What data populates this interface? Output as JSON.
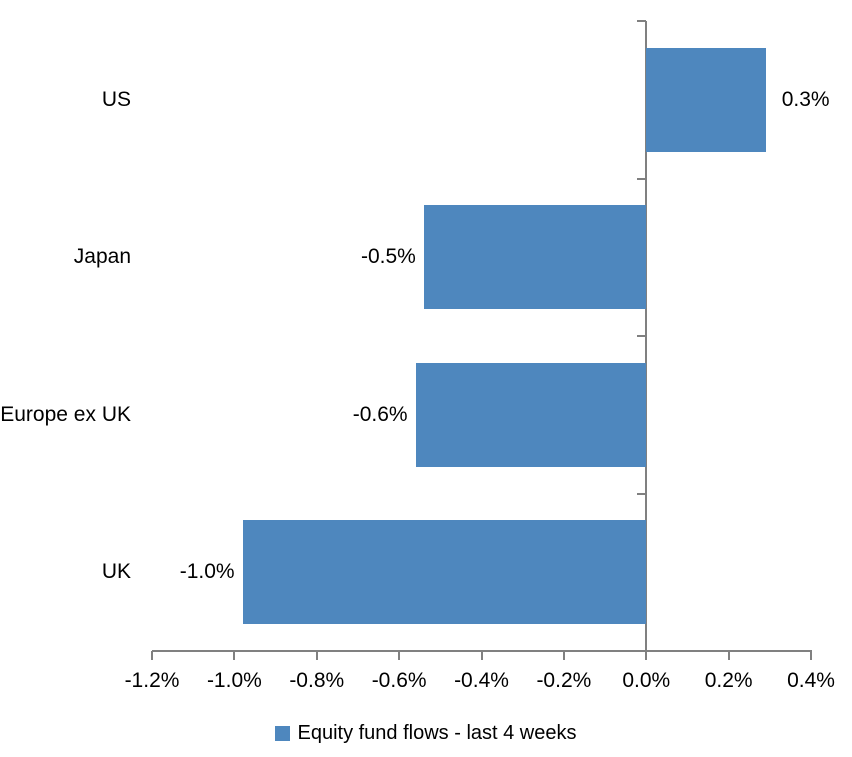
{
  "chart_data": {
    "type": "bar",
    "orientation": "horizontal",
    "title": "",
    "categories": [
      "US",
      "Japan",
      "Europe ex UK",
      "UK"
    ],
    "values": [
      0.3,
      -0.5,
      -0.6,
      -1.0
    ],
    "values_unit": "%",
    "values_as_drawn": [
      0.29,
      -0.54,
      -0.56,
      -0.98
    ],
    "data_labels": [
      "0.3%",
      "-0.5%",
      "-0.6%",
      "-1.0%"
    ],
    "legend_label": "Equity fund flows - last 4 weeks",
    "legend_position": "bottom",
    "xlabel": "",
    "ylabel": "",
    "xlim": [
      -1.2,
      0.4
    ],
    "x_tick_values": [
      -1.2,
      -1.0,
      -0.8,
      -0.6,
      -0.4,
      -0.2,
      0.0,
      0.2,
      0.4
    ],
    "x_tick_labels": [
      "-1.2%",
      "-1.0%",
      "-0.8%",
      "-0.6%",
      "-0.4%",
      "-0.2%",
      "0.0%",
      "0.2%",
      "0.4%"
    ],
    "grid": "off",
    "colors": {
      "bar": "#4E87BE",
      "axis": "#808080",
      "text": "#000000"
    }
  }
}
